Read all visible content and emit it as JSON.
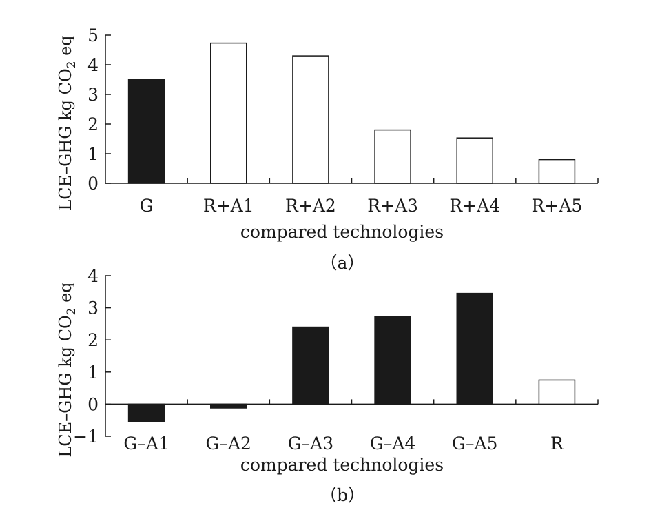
{
  "chart_data": [
    {
      "type": "bar",
      "panel": "(a)",
      "ylabel_main": "LCE–GHG kg CO",
      "ylabel_sub": "2",
      "ylabel_end": " eq",
      "xlabel": "compared technologies",
      "caption": "（a）",
      "ylim": [
        0,
        5
      ],
      "yticks": [
        0,
        1,
        2,
        3,
        4,
        5
      ],
      "ytick_labels": [
        "0",
        "1",
        "2",
        "3",
        "4",
        "5"
      ],
      "categories": [
        "G",
        "R+A1",
        "R+A2",
        "R+A3",
        "R+A4",
        "R+A5"
      ],
      "values": [
        3.5,
        4.73,
        4.3,
        1.8,
        1.53,
        0.8
      ],
      "fills": [
        "#1a1a1a",
        "#ffffff",
        "#ffffff",
        "#ffffff",
        "#ffffff",
        "#ffffff"
      ]
    },
    {
      "type": "bar",
      "panel": "(b)",
      "ylabel_main": "LCE–GHG kg CO",
      "ylabel_sub": "2",
      "ylabel_end": " eq",
      "xlabel": "compared technologies",
      "caption": "（b）",
      "ylim": [
        -1,
        4
      ],
      "yticks": [
        -1,
        0,
        1,
        2,
        3,
        4
      ],
      "ytick_labels": [
        "−1",
        "0",
        "1",
        "2",
        "3",
        "4"
      ],
      "categories": [
        "G–A1",
        "G–A2",
        "G–A3",
        "G–A4",
        "G–A5",
        "R"
      ],
      "values": [
        -0.55,
        -0.12,
        2.4,
        2.72,
        3.45,
        0.75
      ],
      "fills": [
        "#1a1a1a",
        "#1a1a1a",
        "#1a1a1a",
        "#1a1a1a",
        "#1a1a1a",
        "#ffffff"
      ]
    }
  ]
}
